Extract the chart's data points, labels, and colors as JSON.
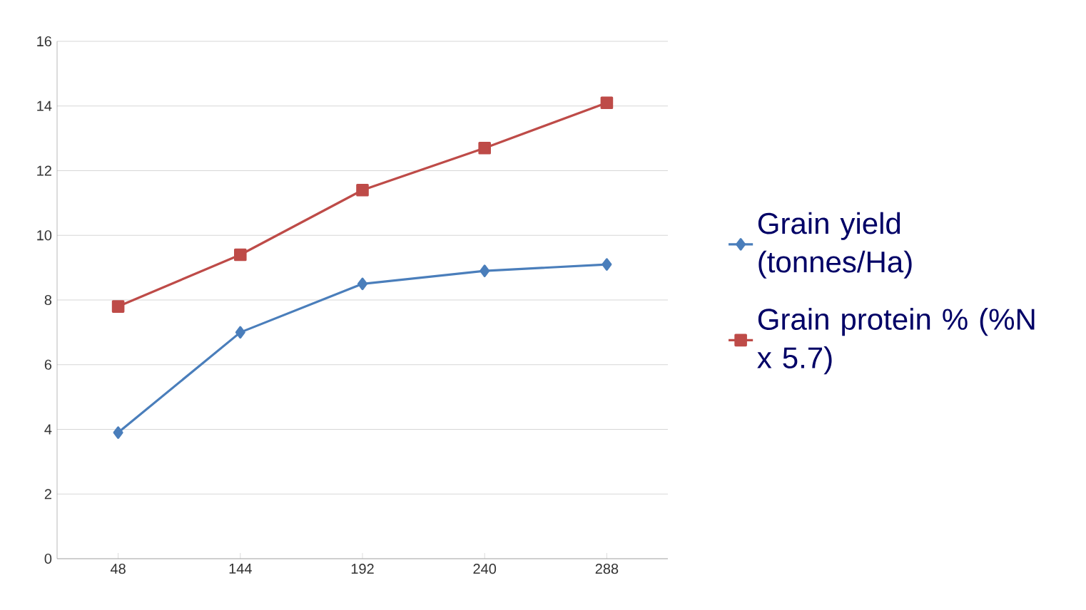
{
  "chart_data": {
    "type": "line",
    "categories": [
      "48",
      "144",
      "192",
      "240",
      "288"
    ],
    "series": [
      {
        "name": "Grain yield (tonnes/Ha)",
        "color": "#4a7ebb",
        "marker": "diamond",
        "values": [
          3.9,
          7.0,
          8.5,
          8.9,
          9.1
        ]
      },
      {
        "name": "Grain protein % (%N x 5.7)",
        "color": "#be4b48",
        "marker": "square",
        "values": [
          7.8,
          9.4,
          11.4,
          12.7,
          14.1
        ]
      }
    ],
    "ylim": [
      0,
      16
    ],
    "yticks": [
      0,
      2,
      4,
      6,
      8,
      10,
      12,
      14,
      16
    ],
    "grid": "y",
    "legend": "right",
    "line_style": "solid"
  }
}
